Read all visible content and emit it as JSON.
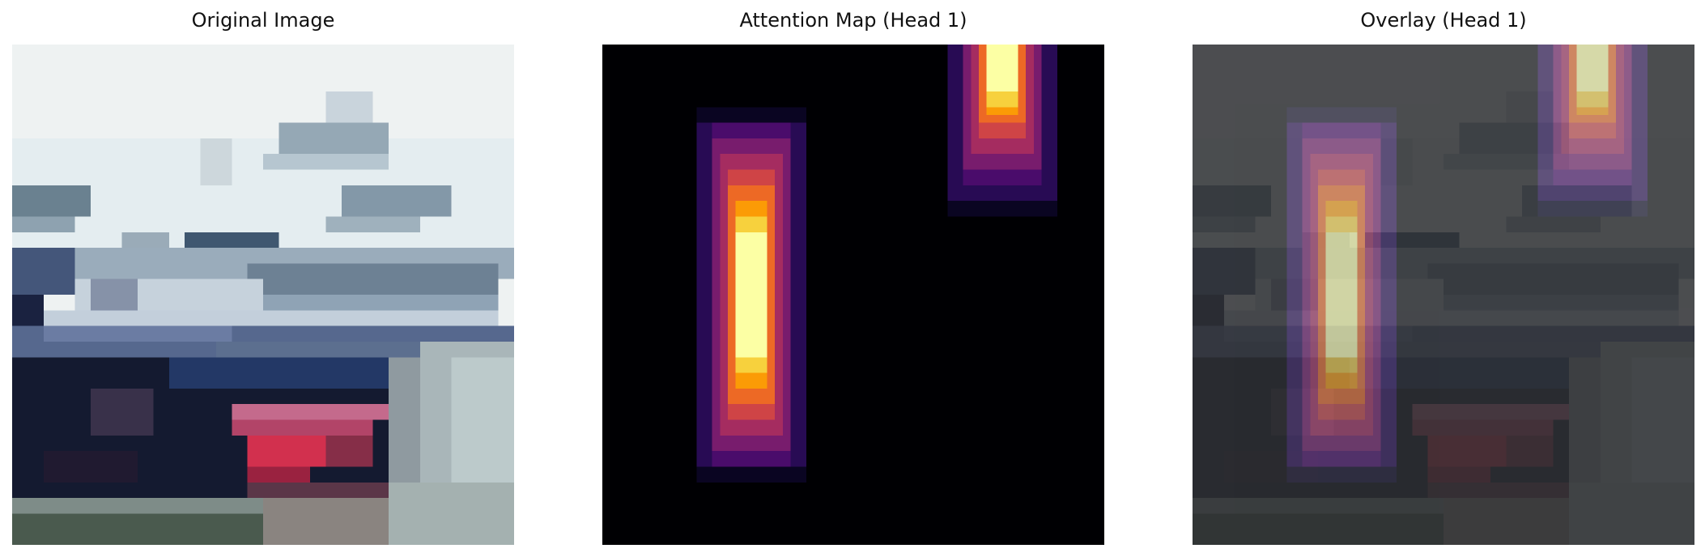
{
  "panels": [
    {
      "title": "Original Image"
    },
    {
      "title": "Attention Map (Head 1)"
    },
    {
      "title": "Overlay (Head 1)"
    }
  ]
}
